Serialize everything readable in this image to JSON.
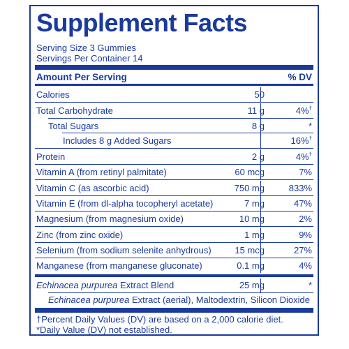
{
  "title": "Supplement Facts",
  "serving_size": "Serving Size  3 Gummies",
  "servings_per_container": "Servings Per Container 14",
  "header": {
    "amount": "Amount Per Serving",
    "dv": "% DV"
  },
  "rows": [
    {
      "label": "Calories",
      "amount": "50",
      "dv": "",
      "dagger": ""
    },
    {
      "label": "Total Carbohydrate",
      "amount": "11 g",
      "dv": "4%",
      "dagger": "†"
    },
    {
      "label": "Total Sugars",
      "amount": "8 g",
      "dv": "*",
      "dagger": ""
    },
    {
      "label": "Includes 8 g Added Sugars",
      "amount": "",
      "dv": "16%",
      "dagger": "†"
    },
    {
      "label": "Protein",
      "amount": "2 g",
      "dv": "4%",
      "dagger": "†"
    },
    {
      "label": "Vitamin A (from retinyl palmitate)",
      "amount": "60 mcg",
      "dv": "7%",
      "dagger": ""
    },
    {
      "label": "Vitamin C (as ascorbic acid)",
      "amount": "750 mg",
      "dv": "833%",
      "dagger": ""
    },
    {
      "label": "Vitamin E (from dl-alpha tocopheryl acetate)",
      "amount": "7 mg",
      "dv": "47%",
      "dagger": ""
    },
    {
      "label": "Magnesium (from magnesium oxide)",
      "amount": "10 mg",
      "dv": "2%",
      "dagger": ""
    },
    {
      "label": "Zinc (from zinc oxide)",
      "amount": "1 mg",
      "dv": "9%",
      "dagger": ""
    },
    {
      "label": "Selenium (from sodium selenite anhydrous)",
      "amount": "15 mcg",
      "dv": "27%",
      "dagger": ""
    },
    {
      "label": "Manganese (from manganese gluconate)",
      "amount": "0.1 mg",
      "dv": "4%",
      "dagger": ""
    }
  ],
  "blend": {
    "name_italic": "Echinacea purpurea",
    "name_rest": " Extract Blend",
    "amount": "25 mg",
    "dv": "*",
    "sub_italic": "Echinacea purpurea",
    "sub_rest": " Extract (aerial), Maltodextrin, Silicon Dioxide"
  },
  "footnotes": {
    "percent_dv": "†Percent Daily Values (DV) are based on a 2,000 calorie diet.",
    "not_established": "*Daily Value (DV) not established."
  },
  "colors": {
    "ink": "#1a3a9c",
    "background": "#ffffff"
  }
}
